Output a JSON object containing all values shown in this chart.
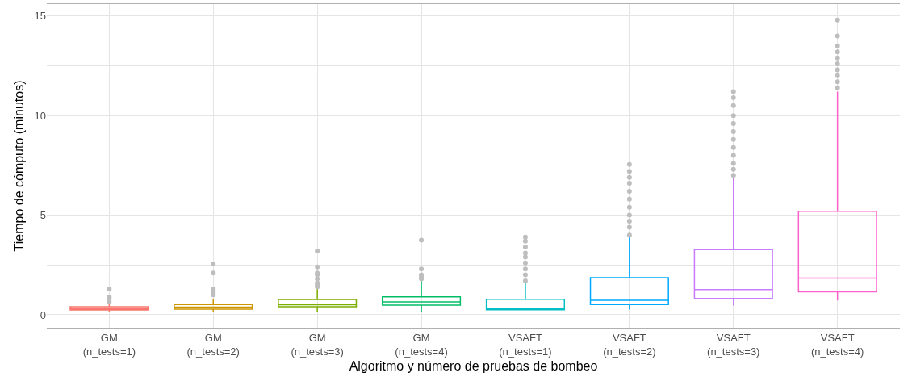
{
  "chart_data": {
    "type": "box",
    "xlabel": "Algoritmo y número de pruebas de bombeo",
    "ylabel": "Tiempo de cómputo (minutos)",
    "categories": [
      "GM\n(n_tests=1)",
      "GM\n(n_tests=2)",
      "GM\n(n_tests=3)",
      "GM\n(n_tests=4)",
      "VSAFT\n(n_tests=1)",
      "VSAFT\n(n_tests=2)",
      "VSAFT\n(n_tests=3)",
      "VSAFT\n(n_tests=4)"
    ],
    "colors": [
      "#f8766d",
      "#cd9600",
      "#7cae00",
      "#00be67",
      "#00bfc4",
      "#00a9ff",
      "#c77cff",
      "#ff61cc"
    ],
    "boxes": [
      {
        "low": 0.15,
        "q1": 0.24,
        "median": 0.3,
        "q3": 0.4,
        "high": 0.55
      },
      {
        "low": 0.15,
        "q1": 0.28,
        "median": 0.38,
        "q3": 0.52,
        "high": 0.8
      },
      {
        "low": 0.15,
        "q1": 0.4,
        "median": 0.5,
        "q3": 0.77,
        "high": 1.3
      },
      {
        "low": 0.15,
        "q1": 0.48,
        "median": 0.65,
        "q3": 0.9,
        "high": 1.7
      },
      {
        "low": 0.25,
        "q1": 0.25,
        "median": 0.3,
        "q3": 0.78,
        "high": 1.6
      },
      {
        "low": 0.26,
        "q1": 0.52,
        "median": 0.73,
        "q3": 1.86,
        "high": 3.9
      },
      {
        "low": 0.47,
        "q1": 0.82,
        "median": 1.26,
        "q3": 3.27,
        "high": 6.85
      },
      {
        "low": 0.72,
        "q1": 1.15,
        "median": 1.84,
        "q3": 5.2,
        "high": 11.2
      }
    ],
    "series": [
      {
        "type": "scatter",
        "color": "#bebebe",
        "marker": "circle",
        "x": [
          "GM\n(n_tests=1)",
          "GM\n(n_tests=1)",
          "GM\n(n_tests=1)",
          "GM\n(n_tests=1)",
          "GM\n(n_tests=2)",
          "GM\n(n_tests=2)",
          "GM\n(n_tests=2)",
          "GM\n(n_tests=2)",
          "GM\n(n_tests=2)",
          "GM\n(n_tests=2)",
          "GM\n(n_tests=3)",
          "GM\n(n_tests=3)",
          "GM\n(n_tests=3)",
          "GM\n(n_tests=3)",
          "GM\n(n_tests=3)",
          "GM\n(n_tests=3)",
          "GM\n(n_tests=3)",
          "GM\n(n_tests=3)",
          "GM\n(n_tests=4)",
          "GM\n(n_tests=4)",
          "GM\n(n_tests=4)",
          "GM\n(n_tests=4)",
          "GM\n(n_tests=4)",
          "VSAFT\n(n_tests=1)",
          "VSAFT\n(n_tests=1)",
          "VSAFT\n(n_tests=1)",
          "VSAFT\n(n_tests=1)",
          "VSAFT\n(n_tests=1)",
          "VSAFT\n(n_tests=1)",
          "VSAFT\n(n_tests=1)",
          "VSAFT\n(n_tests=1)",
          "VSAFT\n(n_tests=1)",
          "VSAFT\n(n_tests=2)",
          "VSAFT\n(n_tests=2)",
          "VSAFT\n(n_tests=2)",
          "VSAFT\n(n_tests=2)",
          "VSAFT\n(n_tests=2)",
          "VSAFT\n(n_tests=2)",
          "VSAFT\n(n_tests=2)",
          "VSAFT\n(n_tests=2)",
          "VSAFT\n(n_tests=2)",
          "VSAFT\n(n_tests=2)",
          "VSAFT\n(n_tests=2)",
          "VSAFT\n(n_tests=3)",
          "VSAFT\n(n_tests=3)",
          "VSAFT\n(n_tests=3)",
          "VSAFT\n(n_tests=3)",
          "VSAFT\n(n_tests=3)",
          "VSAFT\n(n_tests=3)",
          "VSAFT\n(n_tests=3)",
          "VSAFT\n(n_tests=3)",
          "VSAFT\n(n_tests=3)",
          "VSAFT\n(n_tests=3)",
          "VSAFT\n(n_tests=3)",
          "VSAFT\n(n_tests=3)",
          "VSAFT\n(n_tests=4)",
          "VSAFT\n(n_tests=4)",
          "VSAFT\n(n_tests=4)",
          "VSAFT\n(n_tests=4)",
          "VSAFT\n(n_tests=4)",
          "VSAFT\n(n_tests=4)",
          "VSAFT\n(n_tests=4)",
          "VSAFT\n(n_tests=4)",
          "VSAFT\n(n_tests=4)",
          "VSAFT\n(n_tests=4)"
        ],
        "values": [
          0.65,
          0.8,
          0.9,
          1.3,
          1.0,
          1.1,
          1.2,
          1.3,
          2.1,
          2.55,
          1.4,
          1.5,
          1.6,
          1.8,
          2.0,
          2.1,
          2.4,
          3.2,
          1.8,
          1.9,
          2.0,
          2.3,
          3.75,
          1.7,
          2.0,
          2.3,
          2.6,
          2.9,
          3.1,
          3.4,
          3.7,
          3.9,
          4.0,
          4.4,
          4.7,
          5.0,
          5.4,
          5.8,
          6.2,
          6.6,
          6.9,
          7.2,
          7.55,
          7.0,
          7.3,
          7.6,
          8.0,
          8.4,
          8.8,
          9.2,
          9.6,
          10.0,
          10.5,
          10.9,
          11.2,
          11.4,
          11.7,
          12.0,
          12.3,
          12.6,
          12.9,
          13.2,
          13.5,
          14.0,
          14.8
        ]
      }
    ],
    "ylim": [
      -0.65,
      15.6
    ],
    "yticks": [
      0,
      {
        "value": 2.5,
        "label": null
      },
      5,
      {
        "value": 7.5,
        "label": null
      },
      10,
      {
        "value": 12.5,
        "label": null
      },
      15
    ],
    "grid": true
  }
}
